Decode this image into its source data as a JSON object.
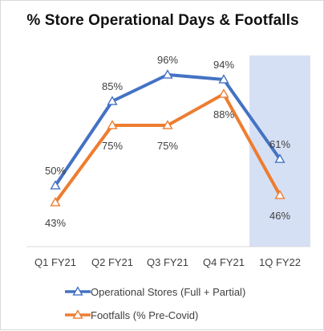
{
  "chart_data": {
    "type": "line",
    "title": "% Store Operational Days & Footfalls",
    "xlabel": "",
    "ylabel": "",
    "categories": [
      "Q1 FY21",
      "Q2 FY21",
      "Q3 FY21",
      "Q4 FY21",
      "1Q FY22"
    ],
    "ylim": [
      0,
      100
    ],
    "grid": false,
    "legend_position": "bottom",
    "highlighted_category": "1Q FY22",
    "series": [
      {
        "name": "Operational Stores (Full + Partial)",
        "values": [
          50,
          85,
          96,
          94,
          61
        ],
        "labels": [
          "50%",
          "85%",
          "96%",
          "94%",
          "61%"
        ],
        "label_placement": "above",
        "color": "#4472C4",
        "marker": "triangle"
      },
      {
        "name": "Footfalls (% Pre-Covid)",
        "values": [
          43,
          75,
          75,
          88,
          46
        ],
        "labels": [
          "43%",
          "75%",
          "75%",
          "88%",
          "46%"
        ],
        "label_placement": "below",
        "color": "#ED7D31",
        "marker": "triangle"
      }
    ],
    "colors": {
      "highlight_band": "#D6E0F5",
      "axis": "#d9d9d9",
      "text": "#404040"
    }
  }
}
